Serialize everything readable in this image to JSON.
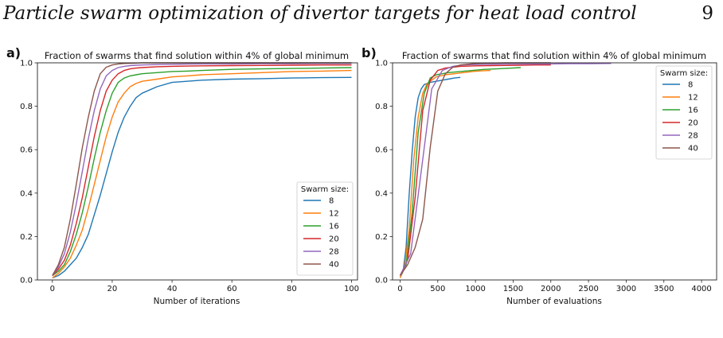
{
  "page": {
    "header": "Particle swarm optimization of divertor targets for heat load control",
    "page_number": "9"
  },
  "chart_data": [
    {
      "type": "line",
      "panel_label": "a)",
      "title": "Fraction of swarms that find solution within 4% of global minimum",
      "xlabel": "Number of iterations",
      "ylabel": "",
      "xlim": [
        -5,
        102
      ],
      "ylim": [
        0,
        1.0
      ],
      "xticks": [
        0,
        20,
        40,
        60,
        80,
        100
      ],
      "yticks": [
        0.0,
        0.2,
        0.4,
        0.6,
        0.8,
        1.0
      ],
      "legend_title": "Swarm size:",
      "legend_position": "lower-right",
      "series": [
        {
          "name": "8",
          "color": "#1f77b4",
          "x": [
            0,
            2,
            4,
            6,
            8,
            10,
            12,
            14,
            16,
            18,
            20,
            22,
            24,
            26,
            28,
            30,
            35,
            40,
            45,
            50,
            60,
            70,
            80,
            90,
            100
          ],
          "y": [
            0.01,
            0.02,
            0.04,
            0.07,
            0.1,
            0.15,
            0.21,
            0.3,
            0.39,
            0.49,
            0.59,
            0.68,
            0.75,
            0.8,
            0.84,
            0.86,
            0.89,
            0.91,
            0.915,
            0.92,
            0.925,
            0.927,
            0.93,
            0.932,
            0.933
          ]
        },
        {
          "name": "12",
          "color": "#ff7f0e",
          "x": [
            0,
            2,
            4,
            6,
            8,
            10,
            12,
            14,
            16,
            18,
            20,
            22,
            24,
            26,
            28,
            30,
            35,
            40,
            45,
            50,
            60,
            70,
            80,
            90,
            100
          ],
          "y": [
            0.01,
            0.03,
            0.06,
            0.1,
            0.16,
            0.23,
            0.33,
            0.44,
            0.55,
            0.66,
            0.75,
            0.82,
            0.86,
            0.89,
            0.905,
            0.915,
            0.925,
            0.935,
            0.94,
            0.945,
            0.95,
            0.955,
            0.96,
            0.962,
            0.965
          ]
        },
        {
          "name": "16",
          "color": "#2ca02c",
          "x": [
            0,
            2,
            4,
            6,
            8,
            10,
            12,
            14,
            16,
            18,
            20,
            22,
            24,
            26,
            28,
            30,
            35,
            40,
            45,
            50,
            60,
            70,
            80,
            90,
            100
          ],
          "y": [
            0.02,
            0.04,
            0.07,
            0.13,
            0.21,
            0.31,
            0.43,
            0.56,
            0.68,
            0.78,
            0.86,
            0.91,
            0.93,
            0.94,
            0.945,
            0.95,
            0.955,
            0.96,
            0.962,
            0.965,
            0.97,
            0.972,
            0.974,
            0.976,
            0.978
          ]
        },
        {
          "name": "20",
          "color": "#d62728",
          "x": [
            0,
            2,
            4,
            6,
            8,
            10,
            12,
            14,
            16,
            18,
            20,
            22,
            24,
            26,
            28,
            30,
            35,
            40,
            45,
            50,
            60,
            70,
            80,
            90,
            100
          ],
          "y": [
            0.02,
            0.05,
            0.09,
            0.16,
            0.26,
            0.38,
            0.52,
            0.66,
            0.78,
            0.87,
            0.92,
            0.95,
            0.965,
            0.972,
            0.976,
            0.978,
            0.982,
            0.984,
            0.985,
            0.986,
            0.987,
            0.988,
            0.989,
            0.99,
            0.99
          ]
        },
        {
          "name": "28",
          "color": "#9467bd",
          "x": [
            0,
            2,
            4,
            6,
            8,
            10,
            12,
            14,
            16,
            18,
            20,
            22,
            24,
            26,
            28,
            30,
            35,
            40,
            45,
            50,
            60,
            70,
            80,
            90,
            100
          ],
          "y": [
            0.02,
            0.06,
            0.12,
            0.22,
            0.35,
            0.5,
            0.65,
            0.78,
            0.88,
            0.94,
            0.965,
            0.978,
            0.984,
            0.987,
            0.989,
            0.99,
            0.992,
            0.993,
            0.994,
            0.995,
            0.995,
            0.996,
            0.996,
            0.997,
            0.997
          ]
        },
        {
          "name": "40",
          "color": "#8c564b",
          "x": [
            0,
            2,
            4,
            6,
            8,
            10,
            12,
            14,
            16,
            18,
            20,
            22,
            24,
            26,
            28,
            30,
            35,
            40,
            45,
            50,
            60,
            70,
            80,
            90,
            100
          ],
          "y": [
            0.02,
            0.07,
            0.15,
            0.28,
            0.44,
            0.61,
            0.75,
            0.87,
            0.95,
            0.98,
            0.99,
            0.995,
            0.997,
            0.998,
            0.999,
            1.0,
            1.0,
            1.0,
            1.0,
            1.0,
            1.0,
            1.0,
            1.0,
            1.0,
            1.0
          ]
        }
      ]
    },
    {
      "type": "line",
      "panel_label": "b)",
      "title": "Fraction of swarms that find solution within 4% of global minimum",
      "xlabel": "Number of evaluations",
      "ylabel": "",
      "xlim": [
        -100,
        4200
      ],
      "ylim": [
        0,
        1.0
      ],
      "xticks": [
        0,
        500,
        1000,
        1500,
        2000,
        2500,
        3000,
        3500,
        4000
      ],
      "yticks": [
        0.0,
        0.2,
        0.4,
        0.6,
        0.8,
        1.0
      ],
      "legend_title": "Swarm size:",
      "legend_position": "upper-right",
      "series": [
        {
          "name": "8",
          "color": "#1f77b4",
          "x": [
            0,
            40,
            80,
            120,
            160,
            200,
            240,
            280,
            320,
            400,
            480,
            560,
            640,
            720,
            800
          ],
          "y": [
            0.01,
            0.04,
            0.15,
            0.39,
            0.59,
            0.75,
            0.84,
            0.88,
            0.9,
            0.91,
            0.915,
            0.92,
            0.925,
            0.93,
            0.933
          ]
        },
        {
          "name": "12",
          "color": "#ff7f0e",
          "x": [
            0,
            60,
            120,
            180,
            240,
            300,
            360,
            420,
            480,
            600,
            720,
            840,
            960,
            1080,
            1200
          ],
          "y": [
            0.01,
            0.06,
            0.23,
            0.55,
            0.75,
            0.86,
            0.905,
            0.92,
            0.935,
            0.945,
            0.95,
            0.955,
            0.96,
            0.963,
            0.965
          ]
        },
        {
          "name": "16",
          "color": "#2ca02c",
          "x": [
            0,
            80,
            160,
            240,
            320,
            400,
            480,
            560,
            640,
            800,
            960,
            1120,
            1280,
            1440,
            1600
          ],
          "y": [
            0.02,
            0.07,
            0.31,
            0.68,
            0.86,
            0.93,
            0.945,
            0.95,
            0.955,
            0.96,
            0.965,
            0.97,
            0.972,
            0.975,
            0.978
          ]
        },
        {
          "name": "20",
          "color": "#d62728",
          "x": [
            0,
            100,
            200,
            300,
            400,
            500,
            600,
            700,
            800,
            1000,
            1200,
            1400,
            1600,
            1800,
            2000
          ],
          "y": [
            0.02,
            0.09,
            0.38,
            0.78,
            0.92,
            0.965,
            0.976,
            0.98,
            0.984,
            0.986,
            0.987,
            0.988,
            0.989,
            0.99,
            0.99
          ]
        },
        {
          "name": "28",
          "color": "#9467bd",
          "x": [
            0,
            140,
            280,
            420,
            560,
            700,
            840,
            980,
            1120,
            1400,
            1680,
            1960,
            2240,
            2520,
            2800
          ],
          "y": [
            0.02,
            0.12,
            0.5,
            0.88,
            0.965,
            0.984,
            0.99,
            0.992,
            0.993,
            0.994,
            0.995,
            0.995,
            0.996,
            0.996,
            0.997
          ]
        },
        {
          "name": "40",
          "color": "#8c564b",
          "x": [
            0,
            100,
            200,
            300,
            400,
            500,
            600,
            700,
            800,
            1000,
            1200,
            1400,
            1600,
            1800,
            2000
          ],
          "y": [
            0.02,
            0.07,
            0.15,
            0.28,
            0.61,
            0.87,
            0.95,
            0.98,
            0.99,
            0.997,
            0.999,
            1.0,
            1.0,
            1.0,
            1.0
          ]
        }
      ]
    }
  ]
}
